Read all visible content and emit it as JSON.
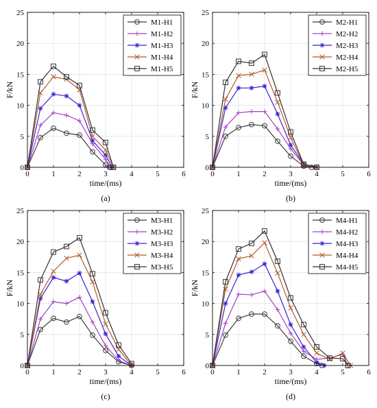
{
  "chart_data": [
    {
      "type": "line",
      "panel_label": "(a)",
      "xlabel": "time/(ms)",
      "ylabel": "F/kN",
      "xlim": [
        0,
        6
      ],
      "ylim": [
        0,
        25
      ],
      "xticks": [
        0,
        1,
        2,
        3,
        4,
        5,
        6
      ],
      "yticks": [
        0,
        5,
        10,
        15,
        20,
        25
      ],
      "grid": true,
      "legend_position": "top-right",
      "series": [
        {
          "name": "M1-H1",
          "color": "#3a3a3a",
          "marker": "circle",
          "x": [
            0,
            0.5,
            1,
            1.5,
            2,
            2.5,
            3,
            3.15,
            3.2
          ],
          "y": [
            0,
            4.8,
            6.3,
            5.5,
            5.2,
            2.5,
            0.4,
            0,
            0
          ]
        },
        {
          "name": "M1-H2",
          "color": "#a040c0",
          "marker": "plus",
          "x": [
            0,
            0.5,
            1,
            1.5,
            2,
            2.5,
            3,
            3.2
          ],
          "y": [
            0,
            6.8,
            8.8,
            8.4,
            7.5,
            3.8,
            1.3,
            0
          ]
        },
        {
          "name": "M1-H3",
          "color": "#3a1fd0",
          "marker": "asterisk",
          "x": [
            0,
            0.5,
            1,
            1.5,
            2,
            2.5,
            3,
            3.25
          ],
          "y": [
            0,
            9.5,
            11.8,
            11.5,
            10.0,
            4.3,
            2.0,
            0
          ]
        },
        {
          "name": "M1-H4",
          "color": "#b05a28",
          "marker": "x",
          "x": [
            0,
            0.5,
            1,
            1.5,
            2,
            2.5,
            3,
            3.3
          ],
          "y": [
            0,
            12.0,
            14.6,
            14.2,
            12.5,
            5.0,
            2.8,
            0
          ]
        },
        {
          "name": "M1-H5",
          "color": "#303030",
          "marker": "square",
          "x": [
            0,
            0.5,
            1,
            1.5,
            2,
            2.5,
            3,
            3.3
          ],
          "y": [
            0,
            13.8,
            16.3,
            14.6,
            13.2,
            6.0,
            4.0,
            0
          ]
        }
      ]
    },
    {
      "type": "line",
      "panel_label": "(b)",
      "xlabel": "time/(ms)",
      "ylabel": "F/kN",
      "xlim": [
        0,
        6
      ],
      "ylim": [
        0,
        25
      ],
      "xticks": [
        0,
        1,
        2,
        3,
        4,
        5,
        6
      ],
      "yticks": [
        0,
        5,
        10,
        15,
        20,
        25
      ],
      "grid": true,
      "legend_position": "top-right",
      "series": [
        {
          "name": "M2-H1",
          "color": "#3a3a3a",
          "marker": "circle",
          "x": [
            0,
            0.5,
            1,
            1.5,
            2,
            2.5,
            3,
            3.5,
            3.8
          ],
          "y": [
            0,
            5.0,
            6.4,
            6.9,
            6.7,
            4.2,
            1.8,
            0.2,
            0
          ]
        },
        {
          "name": "M2-H2",
          "color": "#a040c0",
          "marker": "plus",
          "x": [
            0,
            0.5,
            1,
            1.5,
            2,
            2.5,
            3,
            3.5,
            3.9
          ],
          "y": [
            0,
            6.5,
            8.8,
            9.0,
            9.0,
            6.2,
            3.0,
            0.4,
            0
          ]
        },
        {
          "name": "M2-H3",
          "color": "#3a1fd0",
          "marker": "asterisk",
          "x": [
            0,
            0.5,
            1,
            1.5,
            2,
            2.5,
            3,
            3.5,
            4.0
          ],
          "y": [
            0,
            9.6,
            12.8,
            12.8,
            13.1,
            8.6,
            3.6,
            0.5,
            0
          ]
        },
        {
          "name": "M2-H4",
          "color": "#b05a28",
          "marker": "x",
          "x": [
            0,
            0.5,
            1,
            1.5,
            2,
            2.5,
            3,
            3.5,
            4.0
          ],
          "y": [
            0,
            11.0,
            14.8,
            15.0,
            15.7,
            10.5,
            4.8,
            0.4,
            0
          ]
        },
        {
          "name": "M2-H5",
          "color": "#303030",
          "marker": "square",
          "x": [
            0,
            0.5,
            1,
            1.5,
            2,
            2.5,
            3,
            3.5,
            4.0
          ],
          "y": [
            0,
            13.7,
            17.1,
            16.8,
            18.2,
            12.0,
            5.7,
            0.5,
            0
          ]
        }
      ]
    },
    {
      "type": "line",
      "panel_label": "(c)",
      "xlabel": "time/(ms)",
      "ylabel": "F/kN",
      "xlim": [
        0,
        6
      ],
      "ylim": [
        0,
        25
      ],
      "xticks": [
        0,
        1,
        2,
        3,
        4,
        5,
        6
      ],
      "yticks": [
        0,
        5,
        10,
        15,
        20,
        25
      ],
      "grid": true,
      "legend_position": "top-right",
      "series": [
        {
          "name": "M3-H1",
          "color": "#3a3a3a",
          "marker": "circle",
          "x": [
            0,
            0.5,
            1,
            1.5,
            2,
            2.5,
            3,
            3.5,
            4.0
          ],
          "y": [
            0,
            5.8,
            7.6,
            7.0,
            7.9,
            4.9,
            2.4,
            0.6,
            0
          ]
        },
        {
          "name": "M3-H2",
          "color": "#a040c0",
          "marker": "plus",
          "x": [
            0,
            0.5,
            1,
            1.5,
            2,
            2.5,
            3,
            3.5,
            4.0
          ],
          "y": [
            0,
            7.5,
            10.3,
            10.0,
            11.0,
            7.0,
            3.2,
            0.8,
            0
          ]
        },
        {
          "name": "M3-H3",
          "color": "#3a1fd0",
          "marker": "asterisk",
          "x": [
            0,
            0.5,
            1,
            1.5,
            2,
            2.5,
            3,
            3.5,
            4.0
          ],
          "y": [
            0,
            10.8,
            14.2,
            13.6,
            14.9,
            10.3,
            5.1,
            1.5,
            0
          ]
        },
        {
          "name": "M3-H4",
          "color": "#b05a28",
          "marker": "x",
          "x": [
            0,
            0.5,
            1,
            1.5,
            2,
            2.5,
            3,
            3.5,
            4.0
          ],
          "y": [
            0,
            11.5,
            15.2,
            17.3,
            17.8,
            13.5,
            6.7,
            2.6,
            0
          ]
        },
        {
          "name": "M3-H5",
          "color": "#303030",
          "marker": "square",
          "x": [
            0,
            0.5,
            1,
            1.5,
            2,
            2.5,
            3,
            3.5,
            4.0
          ],
          "y": [
            0,
            13.8,
            18.3,
            19.2,
            20.6,
            14.8,
            8.5,
            3.3,
            0.3
          ]
        }
      ]
    },
    {
      "type": "line",
      "panel_label": "(d)",
      "xlabel": "time/(ms)",
      "ylabel": "F/kN",
      "xlim": [
        0,
        6
      ],
      "ylim": [
        0,
        25
      ],
      "xticks": [
        0,
        1,
        2,
        3,
        4,
        5,
        6
      ],
      "yticks": [
        0,
        5,
        10,
        15,
        20,
        25
      ],
      "grid": true,
      "legend_position": "top-right",
      "series": [
        {
          "name": "M4-H1",
          "color": "#3a3a3a",
          "marker": "circle",
          "x": [
            0,
            0.5,
            1,
            1.5,
            2,
            2.5,
            3,
            3.5,
            4.0,
            4.2
          ],
          "y": [
            0,
            4.9,
            7.6,
            8.3,
            8.3,
            6.4,
            3.9,
            1.5,
            0.3,
            0
          ]
        },
        {
          "name": "M4-H2",
          "color": "#a040c0",
          "marker": "plus",
          "x": [
            0,
            0.5,
            1,
            1.5,
            2,
            2.5,
            3,
            3.5,
            4.0,
            4.5,
            5.0,
            5.2
          ],
          "y": [
            0,
            6.8,
            11.5,
            11.4,
            12.0,
            9.0,
            5.2,
            2.3,
            1.0,
            1.2,
            1.8,
            0
          ]
        },
        {
          "name": "M4-H3",
          "color": "#3a1fd0",
          "marker": "asterisk",
          "x": [
            0,
            0.5,
            1,
            1.5,
            2,
            2.5,
            3,
            3.5,
            4.0,
            4.3
          ],
          "y": [
            0,
            10.0,
            14.6,
            15.1,
            16.4,
            12.0,
            6.6,
            3.0,
            0.5,
            0
          ]
        },
        {
          "name": "M4-H4",
          "color": "#b05a28",
          "marker": "x",
          "x": [
            0,
            0.5,
            1,
            1.5,
            2,
            2.5,
            3,
            3.5,
            4.0,
            4.5,
            5.0,
            5.3
          ],
          "y": [
            0,
            12.3,
            17.2,
            17.7,
            19.8,
            14.9,
            9.3,
            5.0,
            2.0,
            1.0,
            2.0,
            0
          ]
        },
        {
          "name": "M4-H5",
          "color": "#303030",
          "marker": "square",
          "x": [
            0,
            0.5,
            1,
            1.5,
            2,
            2.5,
            3,
            3.5,
            4.0,
            4.5,
            5.0,
            5.2
          ],
          "y": [
            0,
            13.5,
            18.8,
            19.7,
            21.7,
            16.8,
            10.9,
            6.6,
            3.0,
            1.2,
            1.1,
            0
          ]
        }
      ]
    }
  ]
}
